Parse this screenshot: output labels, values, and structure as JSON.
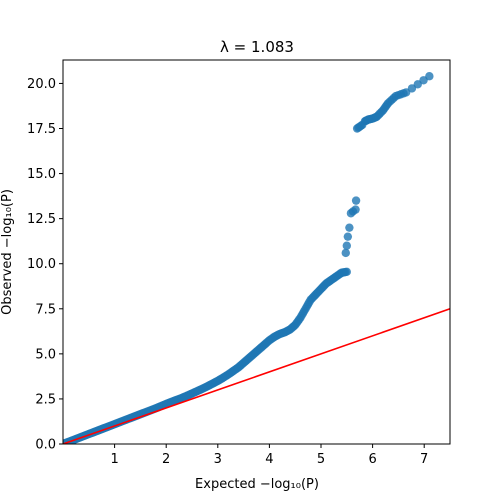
{
  "chart_data": {
    "type": "scatter",
    "title": "λ = 1.083",
    "xlabel": "Expected −log₁₀(P)",
    "ylabel": "Observed −log₁₀(P)",
    "xlim": [
      0,
      7.5
    ],
    "ylim": [
      0,
      21.3
    ],
    "x_ticks": [
      1,
      2,
      3,
      4,
      5,
      6,
      7
    ],
    "y_ticks": [
      0.0,
      2.5,
      5.0,
      7.5,
      10.0,
      12.5,
      15.0,
      17.5,
      20.0
    ],
    "x_tick_labels": [
      "1",
      "2",
      "3",
      "4",
      "5",
      "6",
      "7"
    ],
    "y_tick_labels": [
      "0.0",
      "2.5",
      "5.0",
      "7.5",
      "10.0",
      "12.5",
      "15.0",
      "17.5",
      "20.0"
    ],
    "grid": false,
    "colors": {
      "points": "#1f77b4",
      "reference_line": "#ff0000"
    },
    "reference_line": {
      "x": [
        0,
        7.5
      ],
      "y": [
        0,
        7.5
      ]
    },
    "series": [
      {
        "points": [
          [
            0.02,
            0.02
          ],
          [
            0.1,
            0.11
          ],
          [
            0.2,
            0.22
          ],
          [
            0.3,
            0.33
          ],
          [
            0.4,
            0.44
          ],
          [
            0.5,
            0.55
          ],
          [
            0.6,
            0.66
          ],
          [
            0.7,
            0.77
          ],
          [
            0.8,
            0.88
          ],
          [
            0.9,
            0.99
          ],
          [
            1.0,
            1.1
          ],
          [
            1.1,
            1.21
          ],
          [
            1.2,
            1.32
          ],
          [
            1.3,
            1.43
          ],
          [
            1.4,
            1.54
          ],
          [
            1.5,
            1.65
          ],
          [
            1.6,
            1.76
          ],
          [
            1.7,
            1.87
          ],
          [
            1.8,
            1.98
          ],
          [
            1.9,
            2.1
          ],
          [
            2.0,
            2.22
          ],
          [
            2.1,
            2.33
          ],
          [
            2.2,
            2.44
          ],
          [
            2.3,
            2.55
          ],
          [
            2.4,
            2.67
          ],
          [
            2.5,
            2.8
          ],
          [
            2.6,
            2.93
          ],
          [
            2.7,
            3.06
          ],
          [
            2.8,
            3.2
          ],
          [
            2.9,
            3.35
          ],
          [
            3.0,
            3.5
          ],
          [
            3.1,
            3.67
          ],
          [
            3.2,
            3.85
          ],
          [
            3.3,
            4.05
          ],
          [
            3.4,
            4.25
          ],
          [
            3.5,
            4.5
          ],
          [
            3.6,
            4.75
          ],
          [
            3.7,
            5.0
          ],
          [
            3.8,
            5.25
          ],
          [
            3.9,
            5.5
          ],
          [
            4.0,
            5.75
          ],
          [
            4.1,
            5.95
          ],
          [
            4.2,
            6.1
          ],
          [
            4.3,
            6.2
          ],
          [
            4.4,
            6.35
          ],
          [
            4.5,
            6.6
          ],
          [
            4.6,
            7.0
          ],
          [
            4.7,
            7.5
          ],
          [
            4.8,
            8.0
          ],
          [
            4.9,
            8.3
          ],
          [
            5.0,
            8.6
          ],
          [
            5.1,
            8.9
          ],
          [
            5.2,
            9.1
          ],
          [
            5.3,
            9.3
          ],
          [
            5.4,
            9.5
          ],
          [
            5.5,
            9.55
          ],
          [
            5.48,
            10.6
          ],
          [
            5.5,
            11.0
          ],
          [
            5.52,
            11.5
          ],
          [
            5.55,
            12.0
          ],
          [
            5.58,
            12.8
          ],
          [
            5.62,
            12.9
          ],
          [
            5.67,
            13.0
          ],
          [
            5.68,
            13.5
          ],
          [
            5.7,
            17.5
          ],
          [
            5.8,
            17.7
          ],
          [
            5.85,
            17.9
          ],
          [
            5.92,
            18.0
          ],
          [
            6.0,
            18.05
          ],
          [
            6.08,
            18.15
          ],
          [
            6.2,
            18.5
          ],
          [
            6.3,
            18.9
          ],
          [
            6.45,
            19.3
          ],
          [
            6.65,
            19.5
          ],
          [
            7.1,
            20.4
          ]
        ]
      }
    ]
  }
}
